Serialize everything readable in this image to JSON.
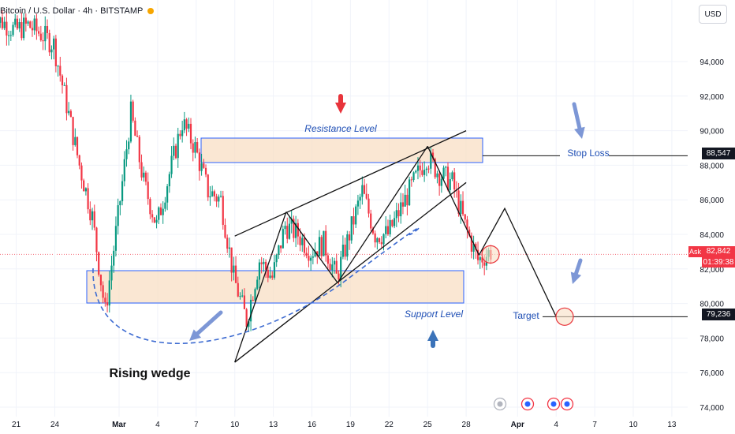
{
  "header": {
    "symbol": "Bitcoin / U.S. Dollar · 4h · BITSTAMP",
    "currency": "USD"
  },
  "price_tags": {
    "ask_label": "Ask",
    "current_price": "82,842",
    "countdown": "01:39:38",
    "stop_loss_price": "88,547",
    "target_price": "79,236"
  },
  "annotations": {
    "resistance": "Resistance Level",
    "support": "Support Level",
    "stop_loss": "Stop Loss",
    "target": "Target",
    "pattern": "Rising wedge"
  },
  "colors": {
    "bull": "#089981",
    "bear": "#f23645",
    "zone_fill": "#f8dfc4",
    "zone_border": "#2962ff",
    "annotation_text": "#1f4fb5",
    "arrow_blue": "#7d97d6",
    "arrow_red": "#e8343b",
    "arrow_steel": "#3b73b9"
  },
  "chart_data": {
    "type": "candlestick",
    "symbol": "Bitcoin / U.S. Dollar",
    "interval": "4h",
    "exchange": "BITSTAMP",
    "ylim": [
      73000,
      96800
    ],
    "y_ticks": [
      74000,
      76000,
      78000,
      80000,
      82000,
      84000,
      86000,
      88000,
      90000,
      92000,
      94000
    ],
    "x_tick_labels": [
      "21",
      "24",
      "Mar",
      "4",
      "7",
      "10",
      "13",
      "16",
      "19",
      "22",
      "25",
      "28",
      "Apr",
      "4",
      "7",
      "10",
      "13"
    ],
    "current_price": 82842,
    "stop_loss": 88547,
    "target": 79236,
    "resistance_zone": [
      88100,
      89550
    ],
    "support_zone": [
      79800,
      81700
    ],
    "price_path_approx": [
      {
        "date": "Feb 19",
        "price": 96500
      },
      {
        "date": "Feb 20",
        "price": 96300
      },
      {
        "date": "Feb 21",
        "price": 95800
      },
      {
        "date": "Feb 22",
        "price": 96100
      },
      {
        "date": "Feb 23",
        "price": 95600
      },
      {
        "date": "Feb 24",
        "price": 95000
      },
      {
        "date": "Feb 25",
        "price": 91500
      },
      {
        "date": "Feb 26",
        "price": 88000
      },
      {
        "date": "Feb 27",
        "price": 85000
      },
      {
        "date": "Feb 28",
        "price": 79500
      },
      {
        "date": "Mar 1",
        "price": 85000
      },
      {
        "date": "Mar 2",
        "price": 91000
      },
      {
        "date": "Mar 3",
        "price": 87000
      },
      {
        "date": "Mar 4",
        "price": 84500
      },
      {
        "date": "Mar 5",
        "price": 87500
      },
      {
        "date": "Mar 6",
        "price": 90500
      },
      {
        "date": "Mar 7",
        "price": 89000
      },
      {
        "date": "Mar 8",
        "price": 86500
      },
      {
        "date": "Mar 9",
        "price": 86000
      },
      {
        "date": "Mar 10",
        "price": 81500
      },
      {
        "date": "Mar 11",
        "price": 79000
      },
      {
        "date": "Mar 12",
        "price": 82500
      },
      {
        "date": "Mar 13",
        "price": 81500
      },
      {
        "date": "Mar 14",
        "price": 84500
      },
      {
        "date": "Mar 15",
        "price": 84000
      },
      {
        "date": "Mar 16",
        "price": 83000
      },
      {
        "date": "Mar 17",
        "price": 83500
      },
      {
        "date": "Mar 18",
        "price": 81500
      },
      {
        "date": "Mar 19",
        "price": 84000
      },
      {
        "date": "Mar 20",
        "price": 86500
      },
      {
        "date": "Mar 21",
        "price": 84000
      },
      {
        "date": "Mar 22",
        "price": 84000
      },
      {
        "date": "Mar 23",
        "price": 85500
      },
      {
        "date": "Mar 24",
        "price": 87000
      },
      {
        "date": "Mar 25",
        "price": 88500
      },
      {
        "date": "Mar 26",
        "price": 87500
      },
      {
        "date": "Mar 27",
        "price": 87000
      },
      {
        "date": "Mar 28",
        "price": 84500
      },
      {
        "date": "Mar 29",
        "price": 82500
      },
      {
        "date": "Mar 30",
        "price": 83000
      }
    ],
    "projection_path": [
      {
        "date": "Mar 29",
        "price": 82800
      },
      {
        "date": "Mar 31",
        "price": 85500
      },
      {
        "date": "Apr 4",
        "price": 79236
      }
    ],
    "wedge_lines": [
      {
        "from": {
          "date": "Mar 10",
          "price": 76600
        },
        "to": {
          "date": "Mar 14",
          "price": 85300
        }
      },
      {
        "from": {
          "date": "Mar 14",
          "price": 85300
        },
        "to": {
          "date": "Mar 18",
          "price": 81200
        }
      },
      {
        "from": {
          "date": "Mar 18",
          "price": 81200
        },
        "to": {
          "date": "Mar 25",
          "price": 89100
        }
      },
      {
        "from": {
          "date": "Mar 25",
          "price": 89100
        },
        "to": {
          "date": "Mar 29",
          "price": 82800
        }
      },
      {
        "from": {
          "date": "Mar 10",
          "price": 76600
        },
        "to": {
          "date": "Mar 28",
          "price": 87000
        }
      },
      {
        "from": {
          "date": "Mar 10",
          "price": 83900
        },
        "to": {
          "date": "Mar 28",
          "price": 90000
        }
      }
    ]
  }
}
